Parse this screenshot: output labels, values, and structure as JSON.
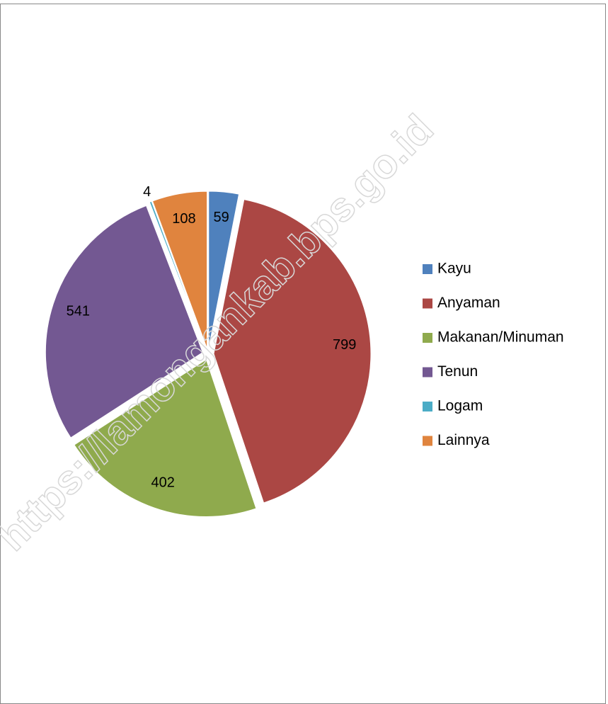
{
  "chart_data": {
    "type": "pie",
    "categories": [
      "Kayu",
      "Anyaman",
      "Makanan/Minuman",
      "Tenun",
      "Logam",
      "Lainnya"
    ],
    "values": [
      59,
      799,
      402,
      541,
      4,
      108
    ],
    "colors": [
      "#4f81bd",
      "#ab4744",
      "#8faa4d",
      "#735892",
      "#4bacc6",
      "#e0843e"
    ],
    "legend": "right",
    "watermark": "https://lamongankab.bps.go.id"
  }
}
